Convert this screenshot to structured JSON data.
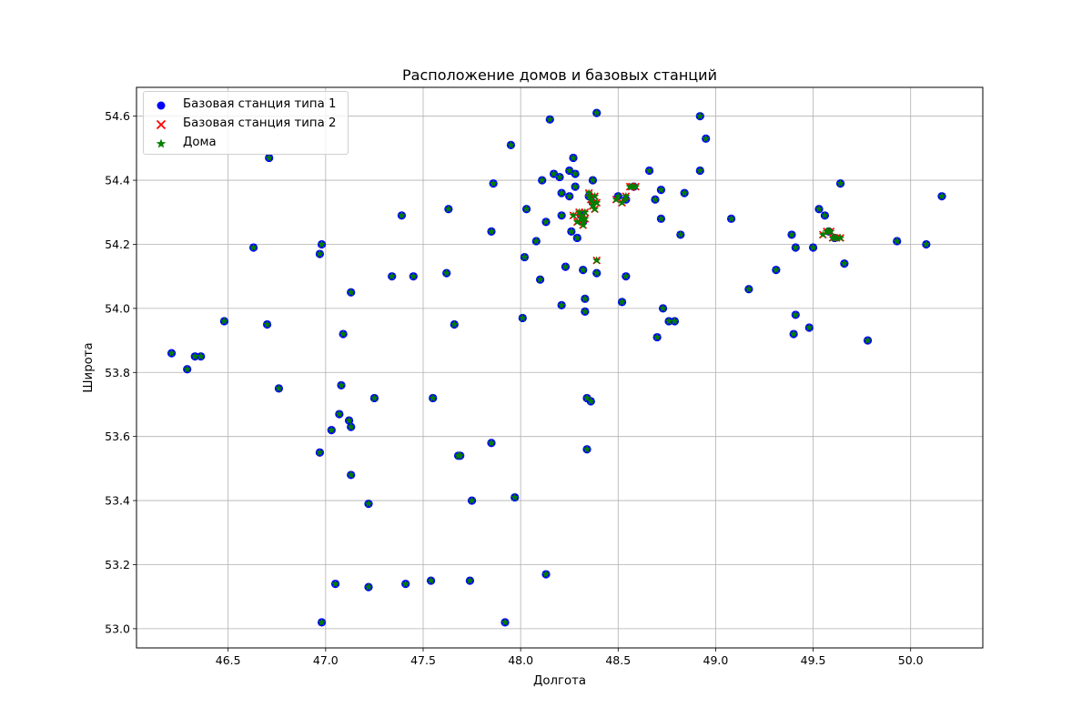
{
  "chart_data": {
    "type": "scatter",
    "title": "Расположение домов и базовых станций",
    "xlabel": "Долгота",
    "ylabel": "Широта",
    "xlim": [
      46.03,
      50.37
    ],
    "ylim": [
      52.94,
      54.69
    ],
    "xticks": [
      "46.5",
      "47.0",
      "47.5",
      "48.0",
      "48.5",
      "49.0",
      "49.5",
      "50.0"
    ],
    "yticks": [
      "53.0",
      "53.2",
      "53.4",
      "53.6",
      "53.8",
      "54.0",
      "54.2",
      "54.4",
      "54.6"
    ],
    "grid": true,
    "legend_position": "top-left",
    "series": [
      {
        "name": "Базовая станция типа 1",
        "marker": "circle",
        "color": "#0000ff",
        "points": [
          [
            46.21,
            53.86
          ],
          [
            46.29,
            53.81
          ],
          [
            46.33,
            53.85
          ],
          [
            46.36,
            53.85
          ],
          [
            46.48,
            53.96
          ],
          [
            46.63,
            54.19
          ],
          [
            46.7,
            53.95
          ],
          [
            46.71,
            54.47
          ],
          [
            46.76,
            53.75
          ],
          [
            46.97,
            54.17
          ],
          [
            46.98,
            54.2
          ],
          [
            46.97,
            53.55
          ],
          [
            46.98,
            53.02
          ],
          [
            47.03,
            53.62
          ],
          [
            47.05,
            53.14
          ],
          [
            47.07,
            53.67
          ],
          [
            47.08,
            53.76
          ],
          [
            47.09,
            53.92
          ],
          [
            47.12,
            53.65
          ],
          [
            47.13,
            54.05
          ],
          [
            47.13,
            53.63
          ],
          [
            47.13,
            53.48
          ],
          [
            47.22,
            53.39
          ],
          [
            47.22,
            53.13
          ],
          [
            47.25,
            53.72
          ],
          [
            47.34,
            54.1
          ],
          [
            47.39,
            54.29
          ],
          [
            47.41,
            53.14
          ],
          [
            47.45,
            54.1
          ],
          [
            47.54,
            53.15
          ],
          [
            47.55,
            53.72
          ],
          [
            47.62,
            54.11
          ],
          [
            47.63,
            54.31
          ],
          [
            47.66,
            53.95
          ],
          [
            47.68,
            53.54
          ],
          [
            47.69,
            53.54
          ],
          [
            47.74,
            53.15
          ],
          [
            47.75,
            53.4
          ],
          [
            47.85,
            53.58
          ],
          [
            47.85,
            54.24
          ],
          [
            47.86,
            54.39
          ],
          [
            47.92,
            53.02
          ],
          [
            47.95,
            54.51
          ],
          [
            47.97,
            53.41
          ],
          [
            48.01,
            53.97
          ],
          [
            48.02,
            54.16
          ],
          [
            48.03,
            54.31
          ],
          [
            48.08,
            54.21
          ],
          [
            48.1,
            54.09
          ],
          [
            48.11,
            54.4
          ],
          [
            48.13,
            54.27
          ],
          [
            48.13,
            53.17
          ],
          [
            48.15,
            54.59
          ],
          [
            48.17,
            54.42
          ],
          [
            48.2,
            54.41
          ],
          [
            48.21,
            54.36
          ],
          [
            48.21,
            54.01
          ],
          [
            48.21,
            54.29
          ],
          [
            48.23,
            54.13
          ],
          [
            48.25,
            54.43
          ],
          [
            48.25,
            54.35
          ],
          [
            48.26,
            54.24
          ],
          [
            48.27,
            54.47
          ],
          [
            48.28,
            54.38
          ],
          [
            48.28,
            54.42
          ],
          [
            48.29,
            54.22
          ],
          [
            48.32,
            54.12
          ],
          [
            48.33,
            53.99
          ],
          [
            48.33,
            54.03
          ],
          [
            48.34,
            53.56
          ],
          [
            48.34,
            53.72
          ],
          [
            48.36,
            53.71
          ],
          [
            48.37,
            54.4
          ],
          [
            48.39,
            54.61
          ],
          [
            48.39,
            54.11
          ],
          [
            48.52,
            54.02
          ],
          [
            48.54,
            54.1
          ],
          [
            48.66,
            54.43
          ],
          [
            48.69,
            54.34
          ],
          [
            48.7,
            53.91
          ],
          [
            48.72,
            54.37
          ],
          [
            48.72,
            54.28
          ],
          [
            48.73,
            54.0
          ],
          [
            48.76,
            53.96
          ],
          [
            48.79,
            53.96
          ],
          [
            48.82,
            54.23
          ],
          [
            48.84,
            54.36
          ],
          [
            48.92,
            54.6
          ],
          [
            48.92,
            54.43
          ],
          [
            48.95,
            54.53
          ],
          [
            49.08,
            54.28
          ],
          [
            49.17,
            54.06
          ],
          [
            49.31,
            54.12
          ],
          [
            49.39,
            54.23
          ],
          [
            49.4,
            53.92
          ],
          [
            49.41,
            54.19
          ],
          [
            49.41,
            53.98
          ],
          [
            49.48,
            53.94
          ],
          [
            49.5,
            54.19
          ],
          [
            49.53,
            54.31
          ],
          [
            49.56,
            54.29
          ],
          [
            49.64,
            54.39
          ],
          [
            49.66,
            54.14
          ],
          [
            49.78,
            53.9
          ],
          [
            49.93,
            54.21
          ],
          [
            50.08,
            54.2
          ],
          [
            50.16,
            54.35
          ],
          [
            48.31,
            54.29
          ],
          [
            48.32,
            54.27
          ],
          [
            48.35,
            54.35
          ],
          [
            48.37,
            54.33
          ],
          [
            48.5,
            54.35
          ],
          [
            48.54,
            54.34
          ],
          [
            48.58,
            54.38
          ],
          [
            49.58,
            54.24
          ],
          [
            49.61,
            54.22
          ]
        ]
      },
      {
        "name": "Базовая станция типа 2",
        "marker": "x",
        "color": "#ff0000",
        "points": [
          [
            48.27,
            54.29
          ],
          [
            48.29,
            54.27
          ],
          [
            48.3,
            54.3
          ],
          [
            48.31,
            54.28
          ],
          [
            48.32,
            54.26
          ],
          [
            48.33,
            54.3
          ],
          [
            48.33,
            54.28
          ],
          [
            48.35,
            54.36
          ],
          [
            48.36,
            54.34
          ],
          [
            48.37,
            54.32
          ],
          [
            48.38,
            54.35
          ],
          [
            48.38,
            54.31
          ],
          [
            48.39,
            54.33
          ],
          [
            48.39,
            54.15
          ],
          [
            48.49,
            54.34
          ],
          [
            48.52,
            54.33
          ],
          [
            48.54,
            54.35
          ],
          [
            48.56,
            54.38
          ],
          [
            48.57,
            54.38
          ],
          [
            48.59,
            54.38
          ],
          [
            49.55,
            54.23
          ],
          [
            49.57,
            54.24
          ],
          [
            49.59,
            54.24
          ],
          [
            49.6,
            54.22
          ],
          [
            49.62,
            54.22
          ],
          [
            49.64,
            54.22
          ]
        ]
      },
      {
        "name": "Дома",
        "marker": "star",
        "color": "#008000",
        "points": [
          [
            46.21,
            53.86
          ],
          [
            46.29,
            53.81
          ],
          [
            46.33,
            53.85
          ],
          [
            46.36,
            53.85
          ],
          [
            46.48,
            53.96
          ],
          [
            46.63,
            54.19
          ],
          [
            46.7,
            53.95
          ],
          [
            46.71,
            54.47
          ],
          [
            46.76,
            53.75
          ],
          [
            46.97,
            54.17
          ],
          [
            46.98,
            54.2
          ],
          [
            46.97,
            53.55
          ],
          [
            46.98,
            53.02
          ],
          [
            47.03,
            53.62
          ],
          [
            47.05,
            53.14
          ],
          [
            47.07,
            53.67
          ],
          [
            47.08,
            53.76
          ],
          [
            47.09,
            53.92
          ],
          [
            47.12,
            53.65
          ],
          [
            47.13,
            54.05
          ],
          [
            47.13,
            53.63
          ],
          [
            47.13,
            53.48
          ],
          [
            47.22,
            53.39
          ],
          [
            47.22,
            53.13
          ],
          [
            47.25,
            53.72
          ],
          [
            47.34,
            54.1
          ],
          [
            47.39,
            54.29
          ],
          [
            47.41,
            53.14
          ],
          [
            47.45,
            54.1
          ],
          [
            47.54,
            53.15
          ],
          [
            47.55,
            53.72
          ],
          [
            47.62,
            54.11
          ],
          [
            47.63,
            54.31
          ],
          [
            47.66,
            53.95
          ],
          [
            47.68,
            53.54
          ],
          [
            47.69,
            53.54
          ],
          [
            47.74,
            53.15
          ],
          [
            47.75,
            53.4
          ],
          [
            47.85,
            53.58
          ],
          [
            47.85,
            54.24
          ],
          [
            47.86,
            54.39
          ],
          [
            47.92,
            53.02
          ],
          [
            47.95,
            54.51
          ],
          [
            47.97,
            53.41
          ],
          [
            48.01,
            53.97
          ],
          [
            48.02,
            54.16
          ],
          [
            48.03,
            54.31
          ],
          [
            48.08,
            54.21
          ],
          [
            48.1,
            54.09
          ],
          [
            48.11,
            54.4
          ],
          [
            48.13,
            54.27
          ],
          [
            48.13,
            53.17
          ],
          [
            48.15,
            54.59
          ],
          [
            48.17,
            54.42
          ],
          [
            48.2,
            54.41
          ],
          [
            48.21,
            54.36
          ],
          [
            48.21,
            54.01
          ],
          [
            48.21,
            54.29
          ],
          [
            48.23,
            54.13
          ],
          [
            48.25,
            54.43
          ],
          [
            48.25,
            54.35
          ],
          [
            48.26,
            54.24
          ],
          [
            48.27,
            54.47
          ],
          [
            48.28,
            54.38
          ],
          [
            48.28,
            54.42
          ],
          [
            48.29,
            54.22
          ],
          [
            48.32,
            54.12
          ],
          [
            48.33,
            53.99
          ],
          [
            48.33,
            54.03
          ],
          [
            48.34,
            53.56
          ],
          [
            48.34,
            53.72
          ],
          [
            48.36,
            53.71
          ],
          [
            48.37,
            54.4
          ],
          [
            48.39,
            54.61
          ],
          [
            48.39,
            54.11
          ],
          [
            48.52,
            54.02
          ],
          [
            48.54,
            54.1
          ],
          [
            48.66,
            54.43
          ],
          [
            48.69,
            54.34
          ],
          [
            48.7,
            53.91
          ],
          [
            48.72,
            54.37
          ],
          [
            48.72,
            54.28
          ],
          [
            48.73,
            54.0
          ],
          [
            48.76,
            53.96
          ],
          [
            48.79,
            53.96
          ],
          [
            48.82,
            54.23
          ],
          [
            48.84,
            54.36
          ],
          [
            48.92,
            54.6
          ],
          [
            48.92,
            54.43
          ],
          [
            48.95,
            54.53
          ],
          [
            49.08,
            54.28
          ],
          [
            49.17,
            54.06
          ],
          [
            49.31,
            54.12
          ],
          [
            49.39,
            54.23
          ],
          [
            49.4,
            53.92
          ],
          [
            49.41,
            54.19
          ],
          [
            49.41,
            53.98
          ],
          [
            49.48,
            53.94
          ],
          [
            49.5,
            54.19
          ],
          [
            49.53,
            54.31
          ],
          [
            49.56,
            54.29
          ],
          [
            49.64,
            54.39
          ],
          [
            49.66,
            54.14
          ],
          [
            49.78,
            53.9
          ],
          [
            49.93,
            54.21
          ],
          [
            50.08,
            54.2
          ],
          [
            50.16,
            54.35
          ],
          [
            48.31,
            54.29
          ],
          [
            48.32,
            54.27
          ],
          [
            48.35,
            54.35
          ],
          [
            48.37,
            54.33
          ],
          [
            48.5,
            54.35
          ],
          [
            48.54,
            54.34
          ],
          [
            48.58,
            54.38
          ],
          [
            49.58,
            54.24
          ],
          [
            49.61,
            54.22
          ],
          [
            48.27,
            54.29
          ],
          [
            48.29,
            54.27
          ],
          [
            48.3,
            54.3
          ],
          [
            48.31,
            54.28
          ],
          [
            48.32,
            54.26
          ],
          [
            48.33,
            54.3
          ],
          [
            48.33,
            54.28
          ],
          [
            48.35,
            54.36
          ],
          [
            48.36,
            54.34
          ],
          [
            48.37,
            54.32
          ],
          [
            48.38,
            54.35
          ],
          [
            48.38,
            54.31
          ],
          [
            48.39,
            54.33
          ],
          [
            48.39,
            54.15
          ],
          [
            48.49,
            54.34
          ],
          [
            48.52,
            54.33
          ],
          [
            48.54,
            54.35
          ],
          [
            48.56,
            54.38
          ],
          [
            48.57,
            54.38
          ],
          [
            48.59,
            54.38
          ],
          [
            49.55,
            54.23
          ],
          [
            49.57,
            54.24
          ],
          [
            49.59,
            54.24
          ],
          [
            49.6,
            54.22
          ],
          [
            49.62,
            54.22
          ],
          [
            49.64,
            54.22
          ]
        ]
      }
    ]
  }
}
